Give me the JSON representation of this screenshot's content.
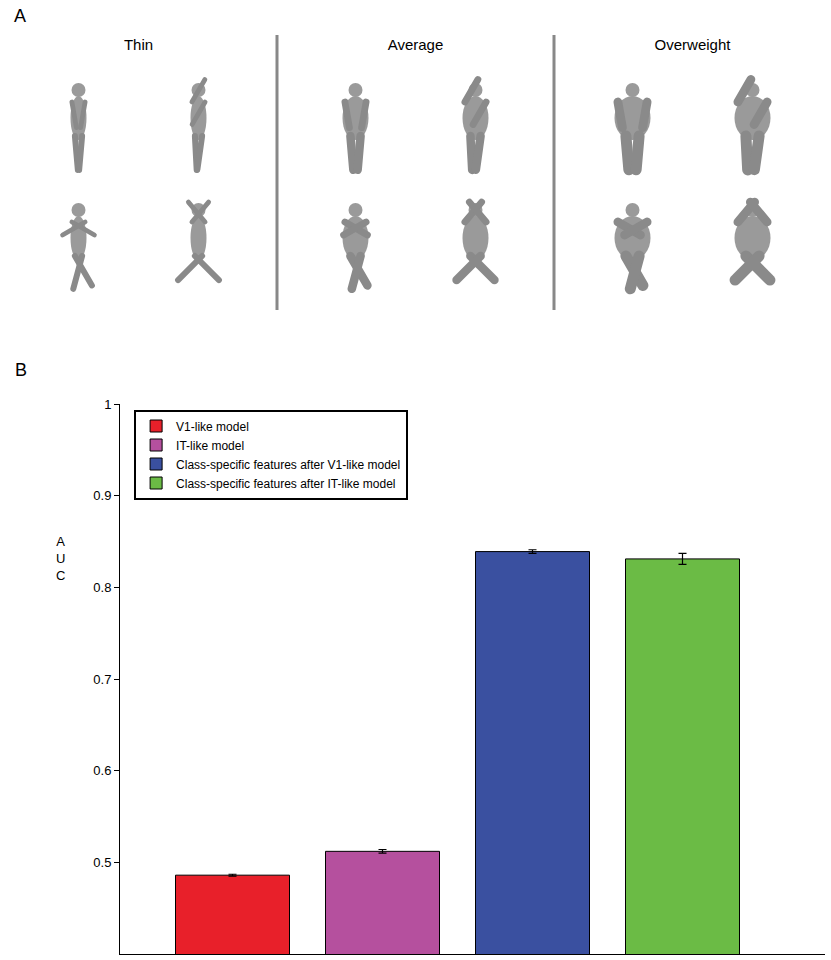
{
  "panel_a": {
    "label": "A",
    "groups": [
      "Thin",
      "Average",
      "Overweight"
    ]
  },
  "chart_data": {
    "type": "bar",
    "label": "B",
    "y_label": "AUC",
    "categories": [
      null,
      null,
      null,
      null
    ],
    "series": [
      {
        "name": "V1-like model",
        "color": "#e8202a",
        "values": [
          0.486,
          null,
          null,
          null
        ],
        "errors": [
          0.001,
          null,
          null,
          null
        ]
      },
      {
        "name": "IT-like model",
        "color": "#b5509e",
        "values": [
          null,
          0.512,
          null,
          null
        ],
        "errors": [
          null,
          0.002,
          null,
          null
        ]
      },
      {
        "name": "Class-specific features after V1-like model",
        "color": "#3a50a0",
        "values": [
          null,
          null,
          0.839,
          null
        ],
        "errors": [
          null,
          null,
          0.002,
          null
        ]
      },
      {
        "name": "Class-specific features after IT-like model",
        "color": "#6bbb45",
        "values": [
          null,
          null,
          null,
          0.831
        ],
        "errors": [
          null,
          null,
          null,
          0.006
        ]
      }
    ],
    "ylim": [
      0.4,
      1
    ],
    "yticks": [
      0.5,
      0.6,
      0.7,
      0.8,
      0.9,
      1
    ],
    "grid": false,
    "legend": "top-left",
    "tick_labels": "y"
  }
}
